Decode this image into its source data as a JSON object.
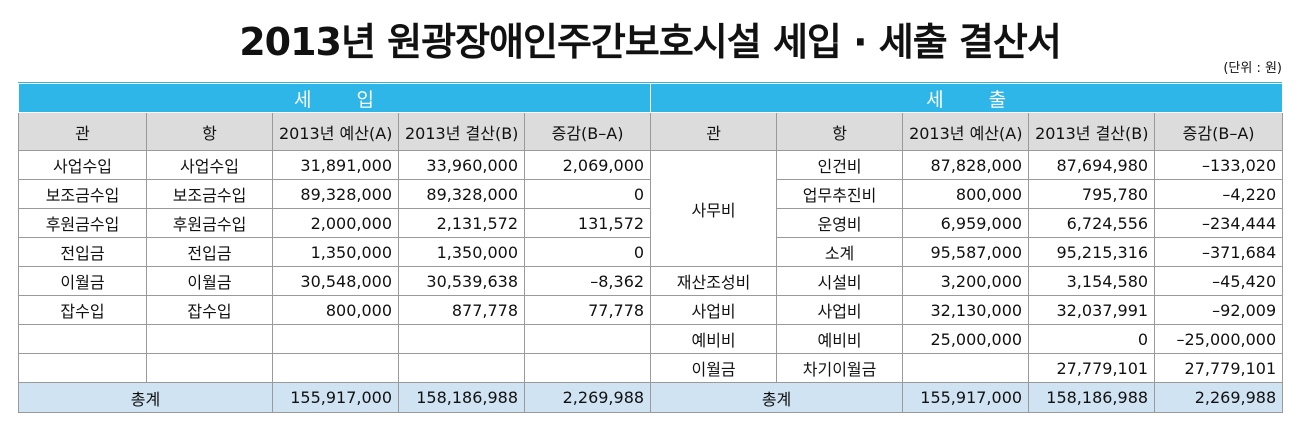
{
  "title": "2013년 원광장애인주간보호시설 세입 · 세출 결산서",
  "unit": "(단위 : 원)",
  "sections": {
    "income": [
      "세",
      "입"
    ],
    "expense": [
      "세",
      "출"
    ]
  },
  "headers": {
    "income": [
      "관",
      "항",
      "2013년 예산(A)",
      "2013년 결산(B)",
      "증감(B–A)"
    ],
    "expense": [
      "관",
      "항",
      "2013년 예산(A)",
      "2013년 결산(B)",
      "증감(B–A)"
    ]
  },
  "income_rows": [
    [
      "사업수입",
      "사업수입",
      "31,891,000",
      "33,960,000",
      "2,069,000"
    ],
    [
      "보조금수입",
      "보조금수입",
      "89,328,000",
      "89,328,000",
      "0"
    ],
    [
      "후원금수입",
      "후원금수입",
      "2,000,000",
      "2,131,572",
      "131,572"
    ],
    [
      "전입금",
      "전입금",
      "1,350,000",
      "1,350,000",
      "0"
    ],
    [
      "이월금",
      "이월금",
      "30,548,000",
      "30,539,638",
      "–8,362"
    ],
    [
      "잡수입",
      "잡수입",
      "800,000",
      "877,778",
      "77,778"
    ],
    [
      "",
      "",
      "",
      "",
      ""
    ],
    [
      "",
      "",
      "",
      "",
      ""
    ]
  ],
  "expense_groups": [
    "사무비",
    "재산조성비",
    "사업비",
    "예비비",
    "이월금"
  ],
  "expense_rows": [
    [
      "인건비",
      "87,828,000",
      "87,694,980",
      "–133,020"
    ],
    [
      "업무추진비",
      "800,000",
      "795,780",
      "–4,220"
    ],
    [
      "운영비",
      "6,959,000",
      "6,724,556",
      "–234,444"
    ],
    [
      "소계",
      "95,587,000",
      "95,215,316",
      "–371,684"
    ],
    [
      "시설비",
      "3,200,000",
      "3,154,580",
      "–45,420"
    ],
    [
      "사업비",
      "32,130,000",
      "32,037,991",
      "–92,009"
    ],
    [
      "예비비",
      "25,000,000",
      "0",
      "–25,000,000"
    ],
    [
      "차기이월금",
      "",
      "27,779,101",
      "27,779,101"
    ]
  ],
  "totals": {
    "label": "총계",
    "income": [
      "155,917,000",
      "158,186,988",
      "2,269,988"
    ],
    "expense": [
      "155,917,000",
      "158,186,988",
      "2,269,988"
    ]
  }
}
